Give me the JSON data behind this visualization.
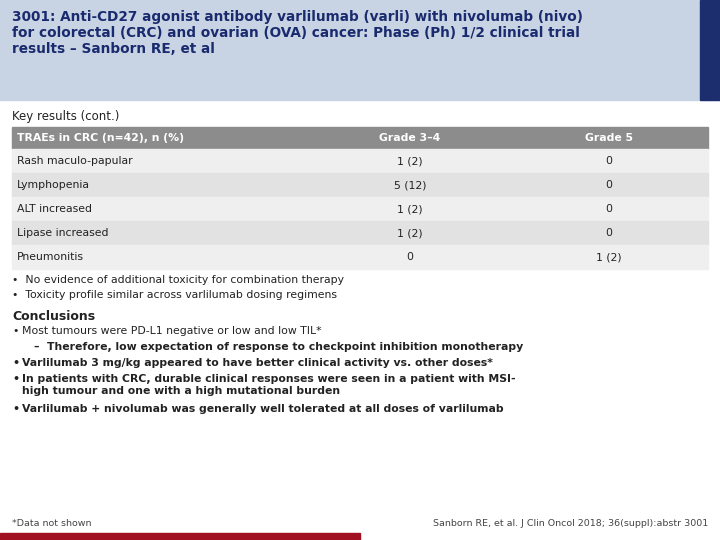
{
  "title_line1": "3001: Anti-CD27 agonist antibody varlilumab (varli) with nivolumab (nivo)",
  "title_line2": "for colorectal (CRC) and ovarian (OVA) cancer: Phase (Ph) 1/2 clinical trial",
  "title_line3": "results – Sanborn RE, et al",
  "title_bg": "#c8d4e3",
  "title_color": "#1a2a6e",
  "title_side_color": "#1c2e6e",
  "section_label": "Key results (cont.)",
  "table_header": [
    "TRAEs in CRC (n=42), n (%)",
    "Grade 3–4",
    "Grade 5"
  ],
  "table_header_bg": "#8c8c8c",
  "table_header_color": "#ffffff",
  "table_rows": [
    [
      "Rash maculo-papular",
      "1 (2)",
      "0"
    ],
    [
      "Lymphopenia",
      "5 (12)",
      "0"
    ],
    [
      "ALT increased",
      "1 (2)",
      "0"
    ],
    [
      "Lipase increased",
      "1 (2)",
      "0"
    ],
    [
      "Pneumonitis",
      "0",
      "1 (2)"
    ]
  ],
  "table_row_bg_light": "#efefef",
  "table_row_bg_dark": "#e2e2e2",
  "bullets_after_table": [
    "No evidence of additional toxicity for combination therapy",
    "Toxicity profile similar across varlilumab dosing regimens"
  ],
  "conclusions_title": "Conclusions",
  "conclusions_bullets": [
    {
      "text": "Most tumours were PD-L1 negative or low and low TIL*",
      "bold": false,
      "indent": 0
    },
    {
      "text": "–  Therefore, low expectation of response to checkpoint inhibition monotherapy",
      "bold": true,
      "indent": 1
    },
    {
      "text": "Varlilumab 3 mg/kg appeared to have better clinical activity vs. other doses*",
      "bold": true,
      "indent": 0
    },
    {
      "text": "In patients with CRC, durable clinical responses were seen in a patient with MSI-\nhigh tumour and one with a high mutational burden",
      "bold": true,
      "indent": 0
    },
    {
      "text": "Varlilumab + nivolumab was generally well tolerated at all doses of varlilumab",
      "bold": true,
      "indent": 0
    }
  ],
  "footnote_left": "*Data not shown",
  "footnote_right": "Sanborn RE, et al. J Clin Oncol 2018; 36(suppl):abstr 3001",
  "footer_bar_color": "#a01020",
  "bg_color": "#ffffff"
}
